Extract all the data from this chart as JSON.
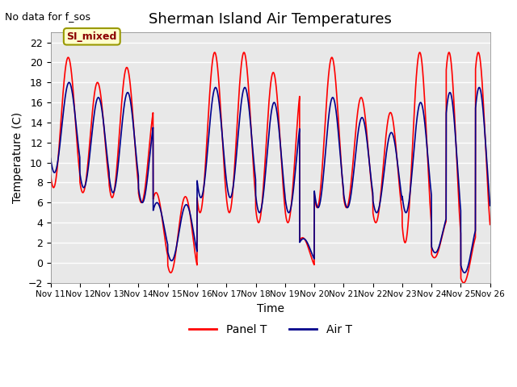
{
  "title": "Sherman Island Air Temperatures",
  "no_data_text": "No data for f_sos",
  "si_mixed_label": "SI_mixed",
  "xlabel": "Time",
  "ylabel": "Temperature (C)",
  "ylim": [
    -2,
    23
  ],
  "xlim_days": 15,
  "bg_color": "#e8e8e8",
  "panel_t_color": "#ff0000",
  "air_t_color": "#00008b",
  "legend_panel": "Panel T",
  "legend_air": "Air T",
  "x_tick_labels": [
    "Nov 11",
    "Nov 12",
    "Nov 13",
    "Nov 14",
    "Nov 15",
    "Nov 16",
    "Nov 17",
    "Nov 18",
    "Nov 19",
    "Nov 20",
    "Nov 21",
    "Nov 22",
    "Nov 23",
    "Nov 24",
    "Nov 25",
    "Nov 26"
  ],
  "x_tick_positions": [
    0,
    1,
    2,
    3,
    4,
    5,
    6,
    7,
    8,
    9,
    10,
    11,
    12,
    13,
    14,
    15
  ],
  "yticks": [
    -2,
    0,
    2,
    4,
    6,
    8,
    10,
    12,
    14,
    16,
    18,
    20,
    22
  ]
}
